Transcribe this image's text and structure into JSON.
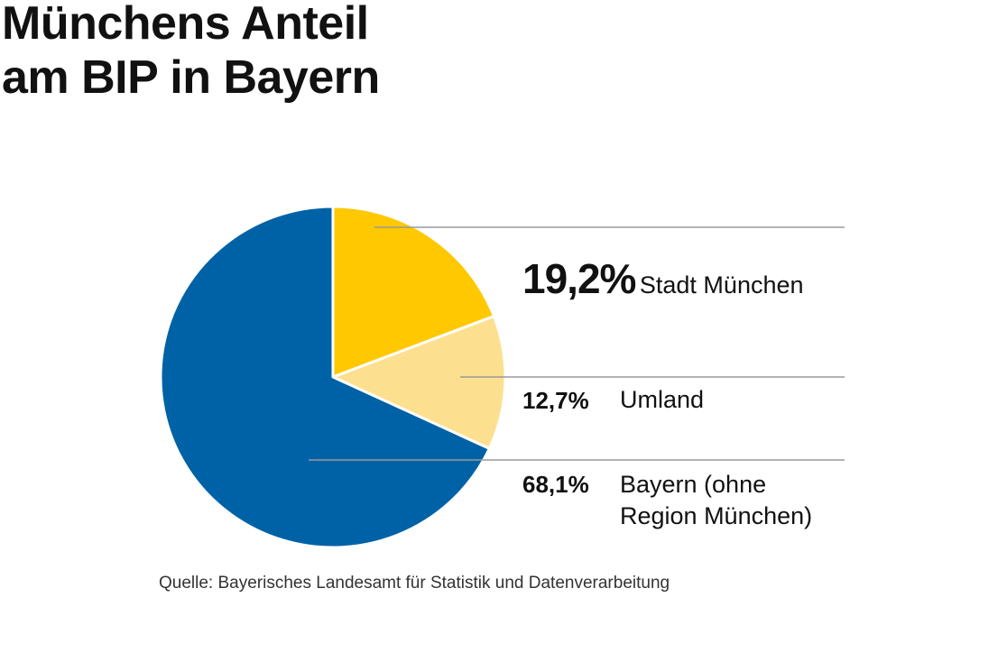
{
  "chart_data": {
    "type": "pie",
    "title": "Münchens Anteil am BIP in Bayern",
    "title_lines": [
      "Münchens Anteil",
      "am BIP in Bayern"
    ],
    "slices": [
      {
        "label": "Stadt München",
        "value": 19.2,
        "display": "19,2%",
        "color": "#FFC800"
      },
      {
        "label": "Umland",
        "value": 12.7,
        "display": "12,7%",
        "color": "#FDE08F"
      },
      {
        "label": "Bayern (ohne Region München)",
        "label_lines": [
          "Bayern (ohne",
          "Region München)"
        ],
        "value": 68.1,
        "display": "68,1%",
        "color": "#0062A6"
      }
    ],
    "start_angle": "12 o'clock, clockwise",
    "source": "Quelle: Bayerisches Landesamt für Statistik und Datenverarbeitung"
  }
}
